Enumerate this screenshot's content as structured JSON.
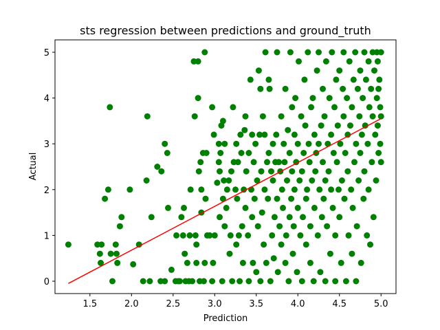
{
  "chart_data": {
    "type": "scatter",
    "title": "sts regression between predictions and ground_truth",
    "xlabel": "Prediction",
    "ylabel": "Actual",
    "xlim": [
      1.08,
      5.18
    ],
    "ylim": [
      -0.27,
      5.27
    ],
    "xticks": [
      1.5,
      2.0,
      2.5,
      3.0,
      3.5,
      4.0,
      4.5,
      5.0
    ],
    "xtick_labels": [
      "1.5",
      "2.0",
      "2.5",
      "3.0",
      "3.5",
      "4.0",
      "4.5",
      "5.0"
    ],
    "yticks": [
      0,
      1,
      2,
      3,
      4,
      5
    ],
    "ytick_labels": [
      "0",
      "1",
      "2",
      "3",
      "4",
      "5"
    ],
    "grid": false,
    "legend": "none",
    "series": [
      {
        "kind": "points",
        "color": "#008000",
        "points": [
          [
            1.24,
            0.8
          ],
          [
            1.59,
            0.8
          ],
          [
            1.62,
            0.6
          ],
          [
            1.64,
            0.8
          ],
          [
            1.63,
            0.4
          ],
          [
            1.68,
            1.8
          ],
          [
            1.72,
            2.0
          ],
          [
            1.74,
            3.8
          ],
          [
            1.75,
            0.6
          ],
          [
            1.77,
            0.0
          ],
          [
            1.81,
            0.8
          ],
          [
            1.82,
            0.6
          ],
          [
            1.83,
            0.4
          ],
          [
            1.86,
            1.2
          ],
          [
            1.88,
            1.4
          ],
          [
            1.98,
            2.0
          ],
          [
            2.02,
            0.37
          ],
          [
            2.09,
            0.8
          ],
          [
            2.14,
            0.0
          ],
          [
            2.18,
            2.2
          ],
          [
            2.19,
            3.6
          ],
          [
            2.22,
            0.0
          ],
          [
            2.24,
            1.4
          ],
          [
            2.31,
            2.5
          ],
          [
            2.35,
            0.0
          ],
          [
            2.36,
            2.4
          ],
          [
            2.4,
            0.0
          ],
          [
            2.4,
            3.0
          ],
          [
            2.43,
            2.8
          ],
          [
            2.44,
            1.6
          ],
          [
            2.48,
            0.25
          ],
          [
            2.53,
            0.0
          ],
          [
            2.54,
            1.0
          ],
          [
            2.56,
            0.0
          ],
          [
            2.58,
            0.0
          ],
          [
            2.6,
            1.4
          ],
          [
            2.62,
            1.0
          ],
          [
            2.63,
            1.6
          ],
          [
            2.64,
            0.6
          ],
          [
            2.65,
            0.0
          ],
          [
            2.67,
            0.4
          ],
          [
            2.69,
            0.0
          ],
          [
            2.7,
            1.0
          ],
          [
            2.71,
            2.0
          ],
          [
            2.73,
            0.0
          ],
          [
            2.75,
            4.8
          ],
          [
            2.76,
            3.6
          ],
          [
            2.77,
            1.0
          ],
          [
            2.78,
            0.8
          ],
          [
            2.78,
            0.4
          ],
          [
            2.8,
            4.8
          ],
          [
            2.8,
            4.0
          ],
          [
            2.81,
            2.4
          ],
          [
            2.82,
            0.0
          ],
          [
            2.83,
            2.6
          ],
          [
            2.84,
            1.5
          ],
          [
            2.84,
            2.0
          ],
          [
            2.86,
            2.8
          ],
          [
            2.87,
            0.0
          ],
          [
            2.88,
            0.4
          ],
          [
            2.88,
            5.0
          ],
          [
            2.89,
            1.8
          ],
          [
            2.9,
            2.8
          ],
          [
            2.91,
            1.0
          ],
          [
            2.94,
            1.0
          ],
          [
            2.97,
            0.0
          ],
          [
            2.97,
            3.8
          ],
          [
            2.98,
            0.4
          ],
          [
            2.99,
            3.2
          ],
          [
            3.0,
            1.0
          ],
          [
            3.03,
            2.15
          ],
          [
            3.05,
            2.6
          ],
          [
            3.05,
            3.0
          ],
          [
            3.06,
            1.4
          ],
          [
            3.06,
            2.4
          ],
          [
            3.07,
            2.8
          ],
          [
            3.08,
            3.4
          ],
          [
            3.09,
            0.0
          ],
          [
            3.1,
            3.5
          ],
          [
            3.1,
            1.8
          ],
          [
            3.11,
            2.2
          ],
          [
            3.12,
            3.0
          ],
          [
            3.12,
            1.2
          ],
          [
            3.14,
            1.6
          ],
          [
            3.15,
            2.0
          ],
          [
            3.17,
            2.2
          ],
          [
            3.18,
            0.6
          ],
          [
            3.19,
            1.0
          ],
          [
            3.2,
            2.4
          ],
          [
            3.21,
            0.0
          ],
          [
            3.22,
            3.8
          ],
          [
            3.23,
            2.6
          ],
          [
            3.25,
            2.0
          ],
          [
            3.26,
            0.8
          ],
          [
            3.26,
            3.0
          ],
          [
            3.27,
            1.8
          ],
          [
            3.28,
            2.6
          ],
          [
            3.29,
            1.0
          ],
          [
            3.3,
            0.0
          ],
          [
            3.31,
            3.2
          ],
          [
            3.32,
            2.8
          ],
          [
            3.33,
            1.2
          ],
          [
            3.34,
            0.4
          ],
          [
            3.35,
            2.0
          ],
          [
            3.36,
            3.3
          ],
          [
            3.37,
            3.6
          ],
          [
            3.37,
            1.6
          ],
          [
            3.38,
            2.4
          ],
          [
            3.4,
            1.0
          ],
          [
            3.41,
            2.8
          ],
          [
            3.41,
            0.0
          ],
          [
            3.43,
            4.4
          ],
          [
            3.44,
            2.0
          ],
          [
            3.45,
            3.2
          ],
          [
            3.45,
            1.4
          ],
          [
            3.46,
            0.4
          ],
          [
            3.47,
            2.6
          ],
          [
            3.48,
            1.8
          ],
          [
            3.49,
            3.0
          ],
          [
            3.5,
            0.2
          ],
          [
            3.51,
            2.2
          ],
          [
            3.52,
            1.2
          ],
          [
            3.53,
            4.6
          ],
          [
            3.54,
            3.2
          ],
          [
            3.55,
            4.2
          ],
          [
            3.55,
            0.0
          ],
          [
            3.56,
            2.4
          ],
          [
            3.57,
            1.5
          ],
          [
            3.58,
            3.6
          ],
          [
            3.59,
            0.8
          ],
          [
            3.6,
            2.0
          ],
          [
            3.6,
            3.2
          ],
          [
            3.61,
            5.0
          ],
          [
            3.62,
            0.4
          ],
          [
            3.63,
            2.6
          ],
          [
            3.64,
            1.8
          ],
          [
            3.65,
            4.4
          ],
          [
            3.65,
            2.8
          ],
          [
            3.66,
            4.2
          ],
          [
            3.67,
            0.0
          ],
          [
            3.68,
            2.4
          ],
          [
            3.69,
            1.0
          ],
          [
            3.7,
            3.0
          ],
          [
            3.7,
            2.2
          ],
          [
            3.71,
            0.5
          ],
          [
            3.72,
            1.4
          ],
          [
            3.73,
            2.6
          ],
          [
            3.74,
            3.2
          ],
          [
            3.75,
            1.8
          ],
          [
            3.75,
            5.0
          ],
          [
            3.76,
            0.2
          ],
          [
            3.77,
            2.6
          ],
          [
            3.78,
            1.2
          ],
          [
            3.79,
            2.4
          ],
          [
            3.8,
            3.6
          ],
          [
            3.8,
            0.8
          ],
          [
            3.81,
            2.0
          ],
          [
            3.82,
            1.6
          ],
          [
            3.83,
            3.0
          ],
          [
            3.84,
            2.6
          ],
          [
            3.85,
            4.2
          ],
          [
            3.85,
            0.4
          ],
          [
            3.86,
            1.0
          ],
          [
            3.87,
            2.2
          ],
          [
            3.88,
            3.3
          ],
          [
            3.89,
            0.0
          ],
          [
            3.9,
            1.4
          ],
          [
            3.9,
            2.8
          ],
          [
            3.91,
            5.0
          ],
          [
            3.92,
            1.8
          ],
          [
            3.93,
            3.8
          ],
          [
            3.93,
            2.4
          ],
          [
            3.94,
            0.6
          ],
          [
            3.95,
            1.2
          ],
          [
            3.96,
            2.0
          ],
          [
            3.96,
            3.2
          ],
          [
            3.97,
            4.0
          ],
          [
            3.98,
            2.6
          ],
          [
            3.99,
            0.2
          ],
          [
            4.0,
            1.6
          ],
          [
            4.0,
            3.0
          ],
          [
            4.01,
            4.8
          ],
          [
            4.02,
            2.2
          ],
          [
            4.03,
            1.0
          ],
          [
            4.04,
            3.6
          ],
          [
            4.05,
            2.4
          ],
          [
            4.05,
            0.0
          ],
          [
            4.06,
            1.4
          ],
          [
            4.07,
            2.8
          ],
          [
            4.08,
            4.4
          ],
          [
            4.09,
            3.4
          ],
          [
            4.1,
            0.8
          ],
          [
            4.1,
            1.8
          ],
          [
            4.11,
            2.0
          ],
          [
            4.12,
            5.0
          ],
          [
            4.13,
            3.0
          ],
          [
            4.14,
            2.6
          ],
          [
            4.15,
            0.4
          ],
          [
            4.15,
            1.2
          ],
          [
            4.16,
            3.8
          ],
          [
            4.17,
            2.2
          ],
          [
            4.18,
            4.0
          ],
          [
            4.19,
            0.0
          ],
          [
            4.2,
            1.6
          ],
          [
            4.2,
            3.2
          ],
          [
            4.21,
            2.4
          ],
          [
            4.22,
            2.8
          ],
          [
            4.23,
            4.6
          ],
          [
            4.24,
            1.0
          ],
          [
            4.25,
            3.0
          ],
          [
            4.25,
            5.0
          ],
          [
            4.26,
            2.0
          ],
          [
            4.27,
            0.2
          ],
          [
            4.28,
            3.4
          ],
          [
            4.29,
            1.4
          ],
          [
            4.3,
            2.6
          ],
          [
            4.3,
            4.2
          ],
          [
            4.31,
            1.8
          ],
          [
            4.32,
            3.6
          ],
          [
            4.33,
            2.2
          ],
          [
            4.33,
            0.0
          ],
          [
            4.34,
            4.8
          ],
          [
            4.35,
            1.2
          ],
          [
            4.36,
            3.0
          ],
          [
            4.37,
            2.4
          ],
          [
            4.38,
            4.0
          ],
          [
            4.39,
            0.6
          ],
          [
            4.4,
            3.2
          ],
          [
            4.4,
            2.0
          ],
          [
            4.41,
            5.0
          ],
          [
            4.42,
            1.6
          ],
          [
            4.43,
            2.8
          ],
          [
            4.44,
            3.8
          ],
          [
            4.45,
            0.0
          ],
          [
            4.45,
            1.0
          ],
          [
            4.46,
            4.4
          ],
          [
            4.47,
            2.6
          ],
          [
            4.48,
            3.4
          ],
          [
            4.49,
            2.0
          ],
          [
            4.5,
            4.6
          ],
          [
            4.5,
            1.4
          ],
          [
            4.51,
            3.0
          ],
          [
            4.52,
            0.4
          ],
          [
            4.53,
            2.2
          ],
          [
            4.54,
            4.2
          ],
          [
            4.55,
            3.6
          ],
          [
            4.55,
            5.0
          ],
          [
            4.56,
            1.8
          ],
          [
            4.57,
            2.8
          ],
          [
            4.58,
            0.0
          ],
          [
            4.59,
            4.0
          ],
          [
            4.6,
            3.2
          ],
          [
            4.6,
            2.4
          ],
          [
            4.61,
            1.0
          ],
          [
            4.62,
            4.8
          ],
          [
            4.63,
            3.4
          ],
          [
            4.64,
            2.0
          ],
          [
            4.65,
            0.6
          ],
          [
            4.65,
            3.8
          ],
          [
            4.66,
            1.6
          ],
          [
            4.67,
            4.4
          ],
          [
            4.68,
            2.6
          ],
          [
            4.69,
            5.0
          ],
          [
            4.7,
            3.0
          ],
          [
            4.7,
            0.0
          ],
          [
            4.71,
            1.2
          ],
          [
            4.72,
            4.2
          ],
          [
            4.73,
            2.2
          ],
          [
            4.74,
            3.6
          ],
          [
            4.75,
            4.6
          ],
          [
            4.75,
            2.8
          ],
          [
            4.76,
            0.4
          ],
          [
            4.77,
            3.2
          ],
          [
            4.78,
            4.0
          ],
          [
            4.79,
            1.8
          ],
          [
            4.8,
            5.0
          ],
          [
            4.8,
            2.4
          ],
          [
            4.81,
            3.4
          ],
          [
            4.82,
            4.4
          ],
          [
            4.83,
            1.0
          ],
          [
            4.84,
            3.0
          ],
          [
            4.85,
            4.8
          ],
          [
            4.85,
            2.0
          ],
          [
            4.86,
            3.8
          ],
          [
            4.87,
            0.8
          ],
          [
            4.88,
            4.2
          ],
          [
            4.89,
            2.6
          ],
          [
            4.9,
            5.0
          ],
          [
            4.9,
            3.6
          ],
          [
            4.91,
            1.4
          ],
          [
            4.92,
            4.6
          ],
          [
            4.93,
            3.2
          ],
          [
            4.94,
            2.2
          ],
          [
            4.95,
            4.0
          ],
          [
            4.95,
            5.0
          ],
          [
            4.96,
            3.4
          ],
          [
            4.97,
            2.8
          ],
          [
            4.98,
            4.4
          ],
          [
            4.99,
            3.0
          ],
          [
            5.0,
            5.0
          ],
          [
            5.0,
            3.6
          ],
          [
            5.0,
            2.6
          ],
          [
            4.96,
            4.8
          ],
          [
            4.97,
            4.2
          ],
          [
            4.99,
            3.8
          ]
        ]
      },
      {
        "kind": "line",
        "color": "#ff0000",
        "points": [
          [
            1.24,
            -0.05
          ],
          [
            5.0,
            3.55
          ]
        ]
      }
    ]
  }
}
